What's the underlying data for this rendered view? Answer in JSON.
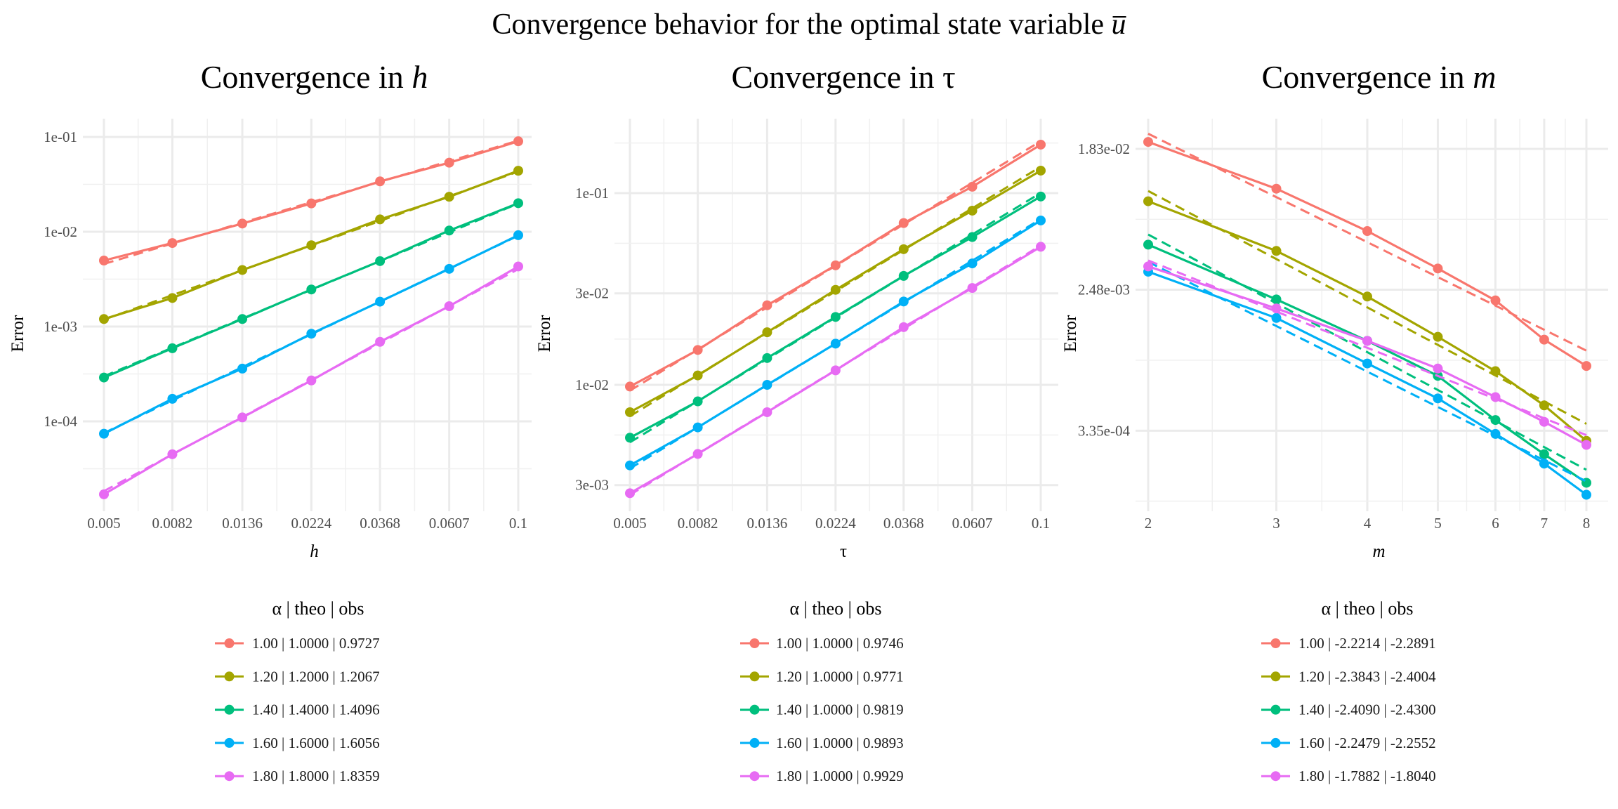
{
  "title": {
    "text": "Convergence behavior for the optimal state variable ",
    "variable": "u"
  },
  "colors": [
    "#F8766D",
    "#A3A500",
    "#00BF7D",
    "#00B0F6",
    "#E76BF3"
  ],
  "chart_data": [
    {
      "type": "line",
      "title": {
        "text": "Convergence in ",
        "variable": "h",
        "italic": true
      },
      "xlabel": "h",
      "ylabel": "Error",
      "xscale": "log",
      "yscale": "log10",
      "x": [
        0.005,
        0.0082,
        0.0136,
        0.0224,
        0.0368,
        0.0607,
        0.1
      ],
      "xtick_labels": [
        "0.005",
        "0.0082",
        "0.0136",
        "0.0224",
        "0.0368",
        "0.0607",
        "0.1"
      ],
      "yticks": [
        0.1,
        0.01,
        0.001,
        0.0001
      ],
      "ytick_labels": [
        "1e-01",
        "1e-02",
        "1e-03",
        "1e-04"
      ],
      "grid": true,
      "legend": {
        "position": "bottom",
        "title": "α  | theo  | obs"
      },
      "series": [
        {
          "name": "1.00 | 1.0000 | 0.9727",
          "alpha": 1.0,
          "theo": 1.0,
          "obs": 0.9727,
          "values": [
            0.00497,
            0.0076,
            0.0122,
            0.0199,
            0.034,
            0.0535,
            0.09
          ]
        },
        {
          "name": "1.20 | 1.2000 | 1.2067",
          "alpha": 1.2,
          "theo": 1.2,
          "obs": 1.2067,
          "values": [
            0.0012,
            0.002,
            0.00395,
            0.0072,
            0.0135,
            0.0234,
            0.044
          ]
        },
        {
          "name": "1.40 | 1.4000 | 1.4096",
          "alpha": 1.4,
          "theo": 1.4,
          "obs": 1.4096,
          "values": [
            0.00029,
            0.00059,
            0.0012,
            0.00246,
            0.0049,
            0.0103,
            0.02
          ]
        },
        {
          "name": "1.60 | 1.6000 | 1.6056",
          "alpha": 1.6,
          "theo": 1.6,
          "obs": 1.6056,
          "values": [
            7.4e-05,
            0.000173,
            0.00036,
            0.00084,
            0.00183,
            0.00406,
            0.0092
          ]
        },
        {
          "name": "1.80 | 1.8000 | 1.8359",
          "alpha": 1.8,
          "theo": 1.8,
          "obs": 1.8359,
          "values": [
            1.7e-05,
            4.5e-05,
            0.00011,
            0.00027,
            0.00069,
            0.00164,
            0.0043
          ]
        }
      ]
    },
    {
      "type": "line",
      "title": {
        "text": "Convergence in ",
        "variable": "τ",
        "italic": false
      },
      "xlabel": "τ",
      "ylabel": "Error",
      "xscale": "log",
      "yscale": "log10",
      "x": [
        0.005,
        0.0082,
        0.0136,
        0.0224,
        0.0368,
        0.0607,
        0.1
      ],
      "xtick_labels": [
        "0.005",
        "0.0082",
        "0.0136",
        "0.0224",
        "0.0368",
        "0.0607",
        "0.1"
      ],
      "yticks": [
        0.1,
        0.03,
        0.01,
        0.003
      ],
      "ytick_labels": [
        "1e-01",
        "3e-02",
        "1e-02",
        "3e-03"
      ],
      "grid": true,
      "legend": {
        "position": "bottom",
        "title": "α  | theo  | obs"
      },
      "series": [
        {
          "name": "1.00 | 1.0000 | 0.9746",
          "alpha": 1.0,
          "theo": 1.0,
          "obs": 0.9746,
          "values": [
            0.0098,
            0.0152,
            0.026,
            0.042,
            0.0698,
            0.108,
            0.179
          ]
        },
        {
          "name": "1.20 | 1.0000 | 0.9771",
          "alpha": 1.2,
          "theo": 1.0,
          "obs": 0.9771,
          "values": [
            0.0072,
            0.0112,
            0.0188,
            0.0313,
            0.051,
            0.081,
            0.131
          ]
        },
        {
          "name": "1.40 | 1.0000 | 0.9819",
          "alpha": 1.4,
          "theo": 1.0,
          "obs": 0.9819,
          "values": [
            0.0053,
            0.0082,
            0.0138,
            0.0226,
            0.037,
            0.059,
            0.096
          ]
        },
        {
          "name": "1.60 | 1.0000 | 0.9893",
          "alpha": 1.6,
          "theo": 1.0,
          "obs": 0.9893,
          "values": [
            0.0038,
            0.006,
            0.01,
            0.0164,
            0.0272,
            0.043,
            0.072
          ]
        },
        {
          "name": "1.80 | 1.0000 | 0.9929",
          "alpha": 1.8,
          "theo": 1.0,
          "obs": 0.9929,
          "values": [
            0.00272,
            0.00436,
            0.0072,
            0.0119,
            0.02,
            0.032,
            0.0525
          ]
        }
      ]
    },
    {
      "type": "line",
      "title": {
        "text": "Convergence in ",
        "variable": "m",
        "italic": true
      },
      "xlabel": "m",
      "ylabel": "Error",
      "xscale": "log",
      "yscale": "log",
      "x": [
        2,
        3,
        4,
        5,
        6,
        7,
        8
      ],
      "xtick_labels": [
        "2",
        "3",
        "4",
        "5",
        "6",
        "7",
        "8"
      ],
      "yticks": [
        0.0183,
        0.00248,
        0.000335
      ],
      "ytick_labels": [
        "1.83e-02",
        "2.48e-03",
        "3.35e-04"
      ],
      "grid": true,
      "legend": {
        "position": "bottom",
        "title": "α  | theo  | obs"
      },
      "series": [
        {
          "name": "1.00 | -2.2214 | -2.2891",
          "alpha": 1.0,
          "theo": -2.2214,
          "obs": -2.2891,
          "values": [
            0.0202,
            0.0104,
            0.0057,
            0.00335,
            0.00213,
            0.00122,
            0.00084
          ]
        },
        {
          "name": "1.20 | -2.3843 | -2.4004",
          "alpha": 1.2,
          "theo": -2.3843,
          "obs": -2.4004,
          "values": [
            0.0087,
            0.0043,
            0.00225,
            0.00127,
            0.00078,
            0.00048,
            0.00029
          ]
        },
        {
          "name": "1.40 | -2.4090 | -2.4300",
          "alpha": 1.4,
          "theo": -2.409,
          "obs": -2.43,
          "values": [
            0.0047,
            0.00216,
            0.0012,
            0.00073,
            0.00039,
            0.00024,
            0.00016
          ]
        },
        {
          "name": "1.60 | -2.2479 | -2.2552",
          "alpha": 1.6,
          "theo": -2.2479,
          "obs": -2.2552,
          "values": [
            0.0032,
            0.00166,
            0.00087,
            0.00053,
            0.00032,
            0.00021,
            0.000135
          ]
        },
        {
          "name": "1.80 | -1.7882 | -1.8040",
          "alpha": 1.8,
          "theo": -1.7882,
          "obs": -1.804,
          "values": [
            0.00345,
            0.0019,
            0.0012,
            0.00081,
            0.00054,
            0.00038,
            0.000274
          ]
        }
      ]
    }
  ]
}
